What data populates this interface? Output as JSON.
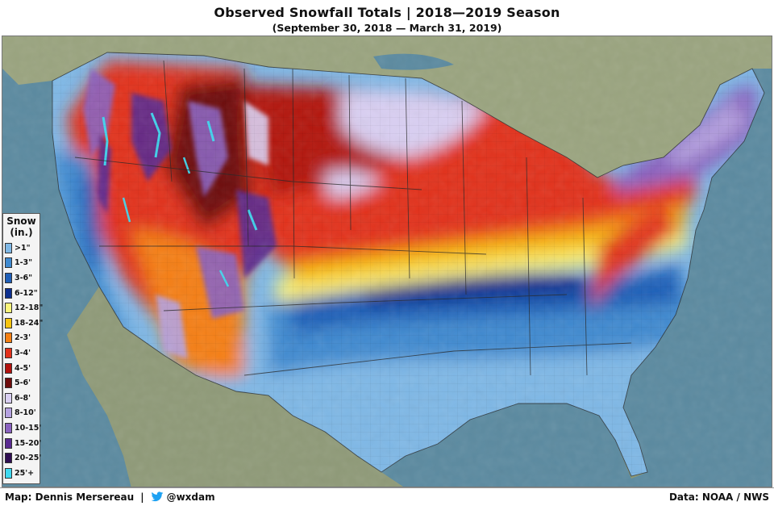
{
  "title": "Observed Snowfall Totals  |  2018—2019 Season",
  "subtitle": "(September 30, 2018 — March 31, 2019)",
  "legend": {
    "title": "Snow",
    "unit": "(in.)",
    "items": [
      {
        "label": ">1\"",
        "color": "#7fb8e6"
      },
      {
        "label": "1-3\"",
        "color": "#3f8ad0"
      },
      {
        "label": "3-6\"",
        "color": "#1f5fb8"
      },
      {
        "label": "6-12\"",
        "color": "#0d2f8f"
      },
      {
        "label": "12-18\"",
        "color": "#fbf47a"
      },
      {
        "label": "18-24\"",
        "color": "#f7c40f"
      },
      {
        "label": "2-3'",
        "color": "#f57f12"
      },
      {
        "label": "3-4'",
        "color": "#e2301b"
      },
      {
        "label": "4-5'",
        "color": "#b3120e"
      },
      {
        "label": "5-6'",
        "color": "#6e0c0c"
      },
      {
        "label": "6-8'",
        "color": "#d9cff2"
      },
      {
        "label": "8-10'",
        "color": "#b5a2e0"
      },
      {
        "label": "10-15'",
        "color": "#8a62c0"
      },
      {
        "label": "15-20'",
        "color": "#5a2b91"
      },
      {
        "label": "20-25'",
        "color": "#2f0e52"
      },
      {
        "label": "25'+",
        "color": "#3fd9f0"
      }
    ]
  },
  "footer": {
    "map_credit": "Map: Dennis Mersereau",
    "separator": "|",
    "twitter_handle": "@wxdam",
    "data_credit": "Data: NOAA / NWS"
  },
  "icons": {
    "social": "twitter-bird-icon"
  },
  "colors": {
    "water": "#5b8aa0",
    "land_outside": "#8f9a78"
  }
}
